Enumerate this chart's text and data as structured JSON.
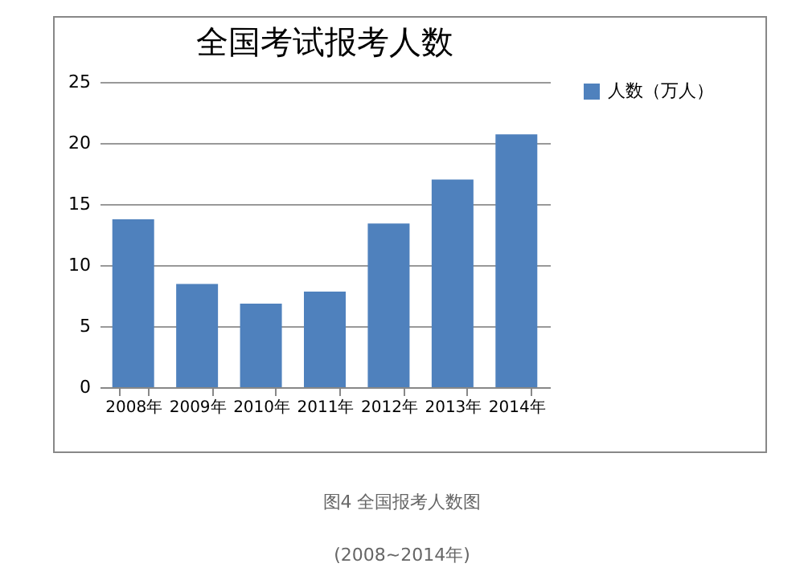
{
  "chart_data": {
    "type": "bar",
    "title": "全国考试报考人数",
    "categories": [
      "2008年",
      "2009年",
      "2010年",
      "2011年",
      "2012年",
      "2013年",
      "2014年"
    ],
    "series": [
      {
        "name": "人数（万人）",
        "color": "#4f81bd",
        "values": [
          13.75,
          8.45,
          6.85,
          7.83,
          13.4,
          17.0,
          20.7
        ]
      }
    ],
    "ylim": [
      0,
      25
    ],
    "yticks": [
      0,
      5,
      10,
      15,
      20,
      25
    ],
    "grid": "y",
    "legend": "right",
    "annotations": [
      "图4 全国报考人数图",
      "(2008~2014年)"
    ]
  }
}
